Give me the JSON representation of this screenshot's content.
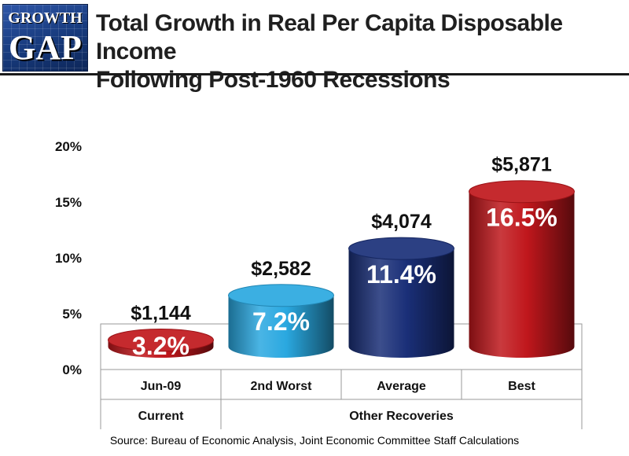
{
  "header": {
    "logo_line1": "GROWTH",
    "logo_line2": "GAP",
    "title_line1": "Total Growth in Real Per Capita Disposable Income",
    "title_line2": "Following Post-1960 Recessions"
  },
  "chart_data": {
    "type": "bar",
    "categories": [
      "Jun-09",
      "2nd Worst",
      "Average",
      "Best"
    ],
    "values": [
      3.2,
      7.2,
      11.4,
      16.5
    ],
    "value_labels": [
      "3.2%",
      "7.2%",
      "11.4%",
      "16.5%"
    ],
    "dollar_labels": [
      "$1,144",
      "$2,582",
      "$4,074",
      "$5,871"
    ],
    "bar_colors": [
      "#c0171c",
      "#2aa8e0",
      "#1a2f78",
      "#c0171c"
    ],
    "group_labels": [
      {
        "label": "Current",
        "span": [
          0,
          0
        ]
      },
      {
        "label": "Other Recoveries",
        "span": [
          1,
          3
        ]
      }
    ],
    "ylim": [
      0,
      20
    ],
    "yticks": [
      "0%",
      "5%",
      "10%",
      "15%",
      "20%"
    ],
    "ytick_values": [
      0,
      5,
      10,
      15,
      20
    ],
    "grid": false,
    "title": "Total Growth in Real Per Capita Disposable Income Following Post-1960 Recessions"
  },
  "footer": {
    "source": "Source:  Bureau of Economic Analysis, Joint Economic Committee Staff Calculations"
  }
}
